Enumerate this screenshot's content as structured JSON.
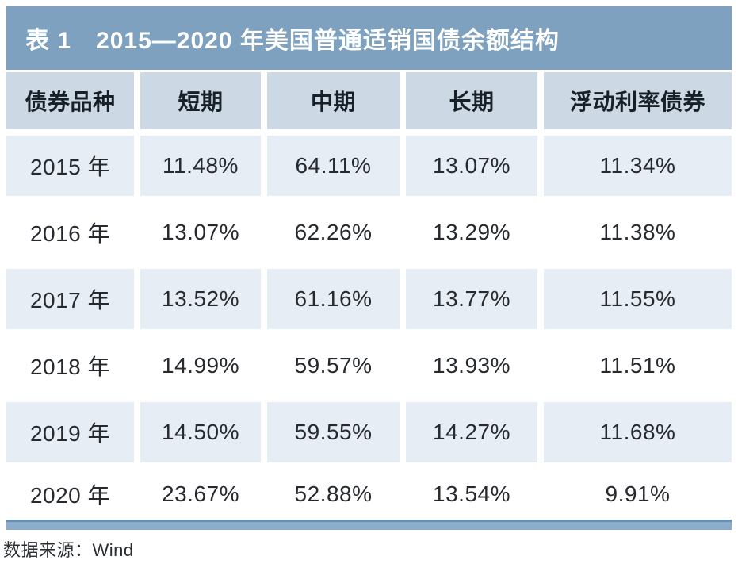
{
  "table": {
    "title": "表 1　2015—2020 年美国普通适销国债余额结构",
    "columns": [
      "债券品种",
      "短期",
      "中期",
      "长期",
      "浮动利率债券"
    ],
    "rows": [
      {
        "year": "2015 年",
        "values": [
          "11.48%",
          "64.11%",
          "13.07%",
          "11.34%"
        ]
      },
      {
        "year": "2016 年",
        "values": [
          "13.07%",
          "62.26%",
          "13.29%",
          "11.38%"
        ]
      },
      {
        "year": "2017 年",
        "values": [
          "13.52%",
          "61.16%",
          "13.77%",
          "11.55%"
        ]
      },
      {
        "year": "2018 年",
        "values": [
          "14.99%",
          "59.57%",
          "13.93%",
          "11.51%"
        ]
      },
      {
        "year": "2019 年",
        "values": [
          "14.50%",
          "59.55%",
          "14.27%",
          "11.68%"
        ]
      },
      {
        "year": "2020 年",
        "values": [
          "23.67%",
          "52.88%",
          "13.54%",
          "9.91%"
        ]
      }
    ]
  },
  "footer": {
    "source": "数据来源：Wind"
  },
  "colors": {
    "title_bar": "#7da1bf",
    "header_row": "#ccd9e4",
    "row_light": "#e7edf4",
    "row_white": "#ffffff",
    "bottom_bar": "#8aacca",
    "bottom_bar_edge": "#698fb0",
    "title_text": "#ffffff",
    "body_text": "#26292e"
  },
  "chart_data": {
    "type": "table",
    "title": "表 1　2015—2020 年美国普通适销国债余额结构",
    "categories": [
      "2015 年",
      "2016 年",
      "2017 年",
      "2018 年",
      "2019 年",
      "2020 年"
    ],
    "series": [
      {
        "name": "短期",
        "values": [
          11.48,
          13.07,
          13.52,
          14.99,
          14.5,
          23.67
        ]
      },
      {
        "name": "中期",
        "values": [
          64.11,
          62.26,
          61.16,
          59.57,
          59.55,
          52.88
        ]
      },
      {
        "name": "长期",
        "values": [
          13.07,
          13.29,
          13.77,
          13.93,
          14.27,
          13.54
        ]
      },
      {
        "name": "浮动利率债券",
        "values": [
          11.34,
          11.38,
          11.55,
          11.51,
          11.68,
          9.91
        ]
      }
    ],
    "unit": "%",
    "source": "数据来源：Wind"
  }
}
